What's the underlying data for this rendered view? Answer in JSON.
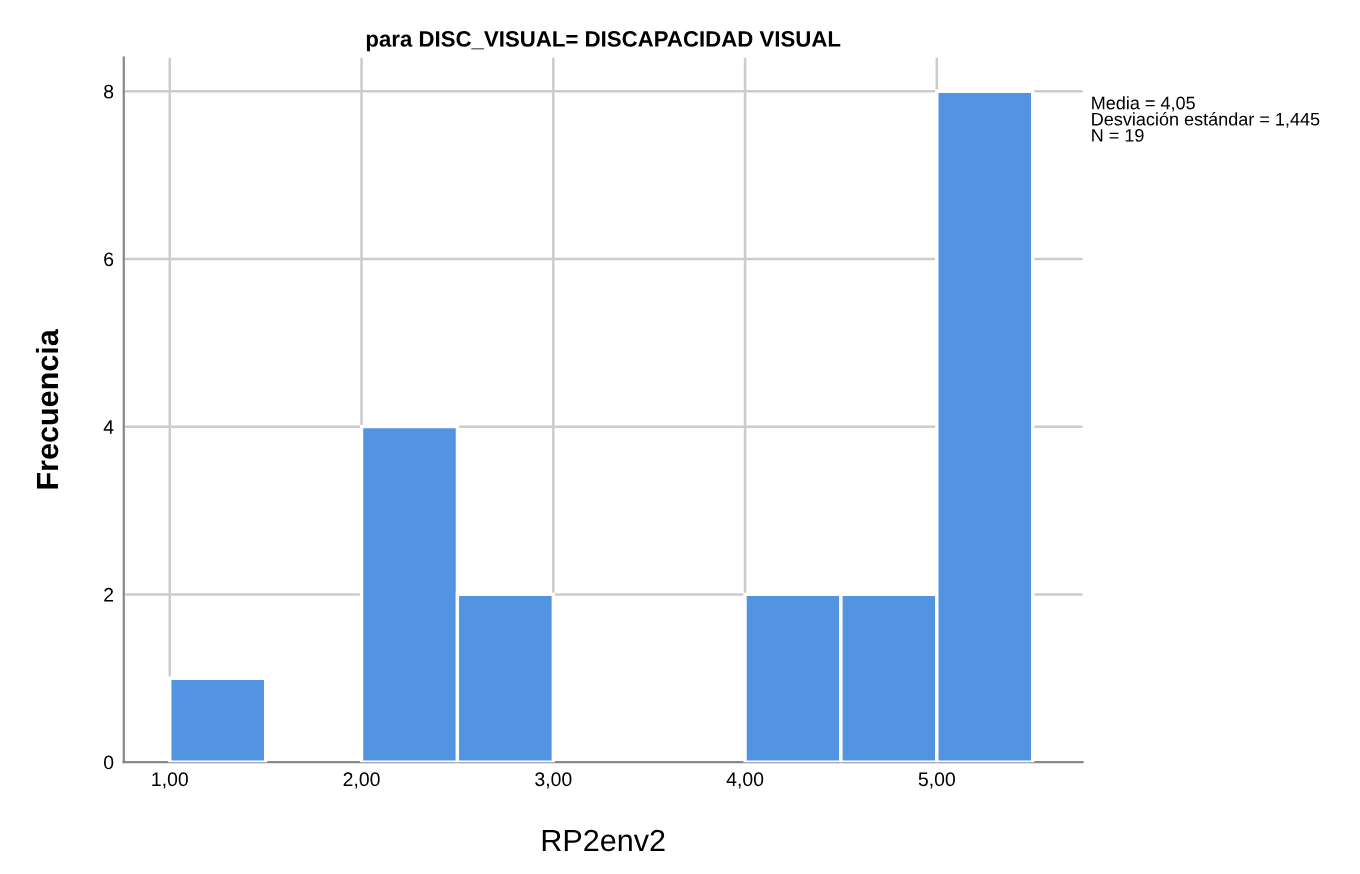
{
  "chart_data": {
    "type": "histogram",
    "title": "para DISC_VISUAL= DISCAPACIDAD VISUAL",
    "xlabel": "RP2env2",
    "ylabel": "Frecuencia",
    "bins": [
      1.0,
      1.5,
      2.0,
      2.5,
      3.0,
      3.5,
      4.0,
      4.5,
      5.0,
      5.5
    ],
    "values": [
      1,
      0,
      4,
      2,
      0,
      0,
      2,
      2,
      8
    ],
    "color": "#5294e2",
    "xlim": [
      0.76,
      5.76
    ],
    "xticks": [
      {
        "value": 1,
        "label": "1,00"
      },
      {
        "value": 2,
        "label": "2,00"
      },
      {
        "value": 3,
        "label": "3,00"
      },
      {
        "value": 4,
        "label": "4,00"
      },
      {
        "value": 5,
        "label": "5,00"
      }
    ],
    "ylim": [
      0,
      8.4
    ],
    "yticks": [
      0,
      2,
      4,
      6,
      8
    ],
    "grid": true,
    "annotations": [
      "Media = 4,05\nDesviación estándar = 1,445\nN = 19"
    ]
  }
}
